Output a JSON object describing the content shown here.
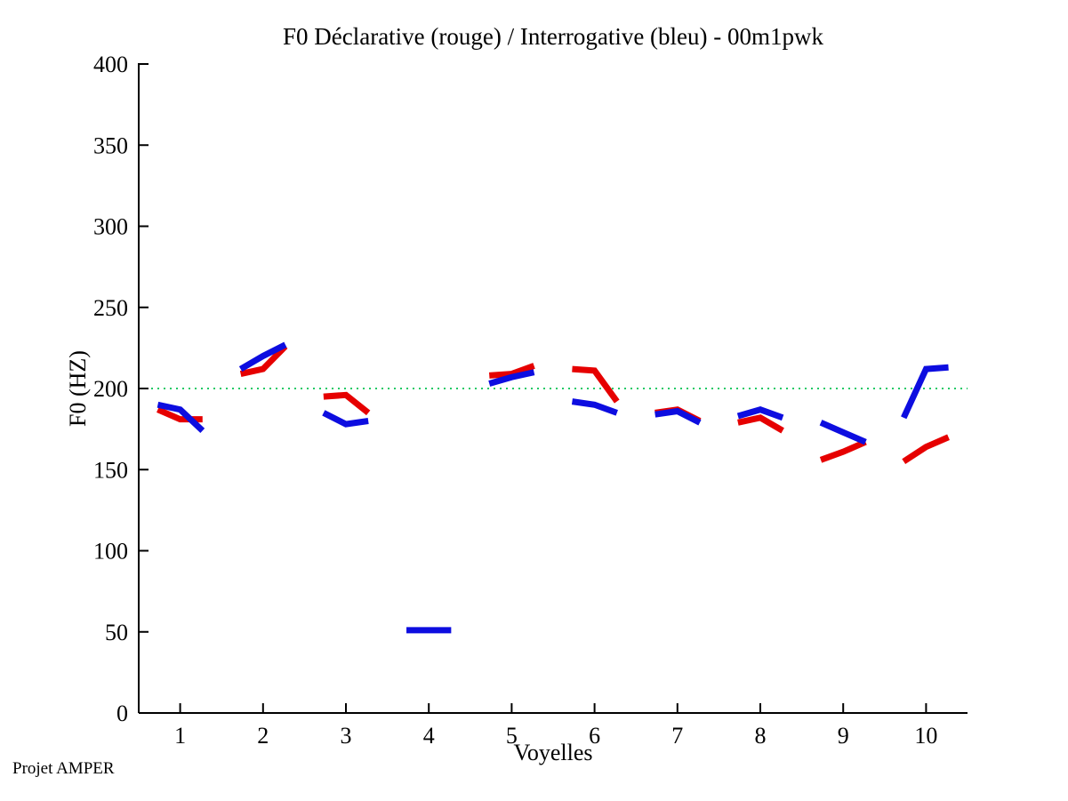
{
  "footer": "Projet AMPER",
  "colors": {
    "declarative": "#e60000",
    "interrogative": "#0d0de0",
    "reference": "#21c965",
    "axis": "#000000",
    "background": "#ffffff"
  },
  "chart_data": {
    "type": "line",
    "title": "F0 Déclarative (rouge) / Interrogative (bleu) - 00m1pwk",
    "xlabel": "Voyelles",
    "ylabel": "F0 (HZ)",
    "xlim": [
      0.5,
      10.5
    ],
    "ylim": [
      0,
      400
    ],
    "xticks": [
      1,
      2,
      3,
      4,
      5,
      6,
      7,
      8,
      9,
      10
    ],
    "yticks": [
      0,
      50,
      100,
      150,
      200,
      250,
      300,
      350,
      400
    ],
    "grid": false,
    "legend": "none (encoded in title: rouge=déclarative, bleu=interrogative)",
    "reference_line": {
      "y": 200,
      "color": "#21c965",
      "style": "dotted"
    },
    "point_offsets": [
      -0.27,
      0,
      0.27
    ],
    "line_width": 7,
    "series": [
      {
        "name": "Déclarative (rouge)",
        "key": "declarative",
        "color": "#e60000",
        "groups": [
          [
            187,
            181,
            181
          ],
          [
            209,
            212,
            226
          ],
          [
            195,
            196,
            185
          ],
          null,
          [
            208,
            209,
            214
          ],
          [
            212,
            211,
            192
          ],
          [
            185,
            187,
            180
          ],
          [
            179,
            182,
            174
          ],
          [
            156,
            161,
            167
          ],
          [
            155,
            164,
            170
          ]
        ]
      },
      {
        "name": "Interrogative (bleu)",
        "key": "interrogative",
        "color": "#0d0de0",
        "groups": [
          [
            190,
            187,
            174
          ],
          [
            212,
            220,
            227
          ],
          [
            185,
            178,
            180
          ],
          [
            51,
            51,
            51
          ],
          [
            203,
            207,
            210
          ],
          [
            192,
            190,
            185
          ],
          [
            184,
            186,
            179
          ],
          [
            183,
            187,
            182
          ],
          [
            179,
            173,
            167
          ],
          [
            182,
            212,
            213
          ]
        ]
      }
    ]
  }
}
